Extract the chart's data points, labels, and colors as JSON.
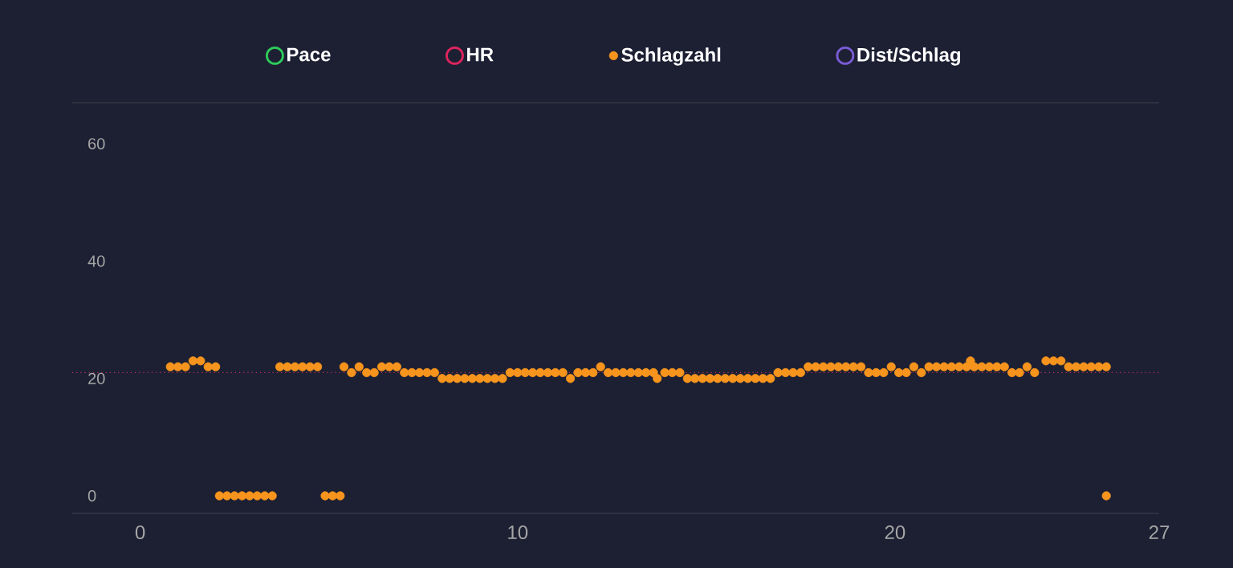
{
  "chart_data": {
    "type": "scatter",
    "marker": "circle",
    "legend": "top",
    "grid": false,
    "xlim": [
      -1.8,
      27
    ],
    "xticks": [
      0,
      10,
      20,
      27
    ],
    "ylim": [
      -3,
      67
    ],
    "yticks": [
      0,
      20,
      40,
      60
    ],
    "ref_lines": [
      {
        "axis": "y",
        "value": 21,
        "color": "#c0305a",
        "line_style": "dotted"
      }
    ],
    "series": [
      {
        "name": "Pace",
        "color": "#2ecc5a"
      },
      {
        "name": "HR",
        "color": "#e0245e"
      },
      {
        "name": "Schlagzahl",
        "color": "#f7941d",
        "x": [
          0.8,
          1.0,
          1.2,
          1.4,
          1.6,
          1.8,
          2.0,
          2.1,
          2.3,
          2.5,
          2.7,
          2.9,
          3.1,
          3.3,
          3.5,
          3.7,
          3.9,
          4.1,
          4.3,
          4.5,
          4.7,
          4.9,
          5.1,
          5.3,
          5.4,
          5.6,
          5.8,
          6.0,
          6.2,
          6.4,
          6.6,
          6.8,
          7.0,
          7.2,
          7.4,
          7.6,
          7.8,
          8.0,
          8.2,
          8.4,
          8.6,
          8.8,
          9.0,
          9.2,
          9.4,
          9.6,
          9.8,
          10.0,
          10.2,
          10.4,
          10.6,
          10.8,
          11.0,
          11.2,
          11.4,
          11.6,
          11.8,
          12.0,
          12.2,
          12.4,
          12.6,
          12.8,
          13.0,
          13.2,
          13.4,
          13.6,
          13.7,
          13.9,
          14.1,
          14.3,
          14.5,
          14.7,
          14.9,
          15.1,
          15.3,
          15.5,
          15.7,
          15.9,
          16.1,
          16.3,
          16.5,
          16.7,
          16.9,
          17.1,
          17.3,
          17.5,
          17.7,
          17.9,
          18.1,
          18.3,
          18.5,
          18.7,
          18.9,
          19.1,
          19.3,
          19.5,
          19.7,
          19.9,
          20.1,
          20.3,
          20.5,
          20.7,
          20.9,
          21.1,
          21.3,
          21.5,
          21.7,
          21.9,
          22.0,
          22.1,
          22.3,
          22.5,
          22.7,
          22.9,
          23.1,
          23.3,
          23.5,
          23.7,
          24.0,
          24.2,
          24.4,
          24.6,
          24.8,
          25.0,
          25.2,
          25.4,
          25.6,
          25.6
        ],
        "values": [
          22,
          22,
          22,
          23,
          23,
          22,
          22,
          0,
          0,
          0,
          0,
          0,
          0,
          0,
          0,
          22,
          22,
          22,
          22,
          22,
          22,
          0,
          0,
          0,
          22,
          21,
          22,
          21,
          21,
          22,
          22,
          22,
          21,
          21,
          21,
          21,
          21,
          20,
          20,
          20,
          20,
          20,
          20,
          20,
          20,
          20,
          21,
          21,
          21,
          21,
          21,
          21,
          21,
          21,
          20,
          21,
          21,
          21,
          22,
          21,
          21,
          21,
          21,
          21,
          21,
          21,
          20,
          21,
          21,
          21,
          20,
          20,
          20,
          20,
          20,
          20,
          20,
          20,
          20,
          20,
          20,
          20,
          21,
          21,
          21,
          21,
          22,
          22,
          22,
          22,
          22,
          22,
          22,
          22,
          21,
          21,
          21,
          22,
          21,
          21,
          22,
          21,
          22,
          22,
          22,
          22,
          22,
          22,
          23,
          22,
          22,
          22,
          22,
          22,
          21,
          21,
          22,
          21,
          23,
          23,
          23,
          22,
          22,
          22,
          22,
          22,
          22,
          0
        ]
      },
      {
        "name": "Dist/Schlag",
        "color": "#7b5cd6"
      }
    ]
  }
}
